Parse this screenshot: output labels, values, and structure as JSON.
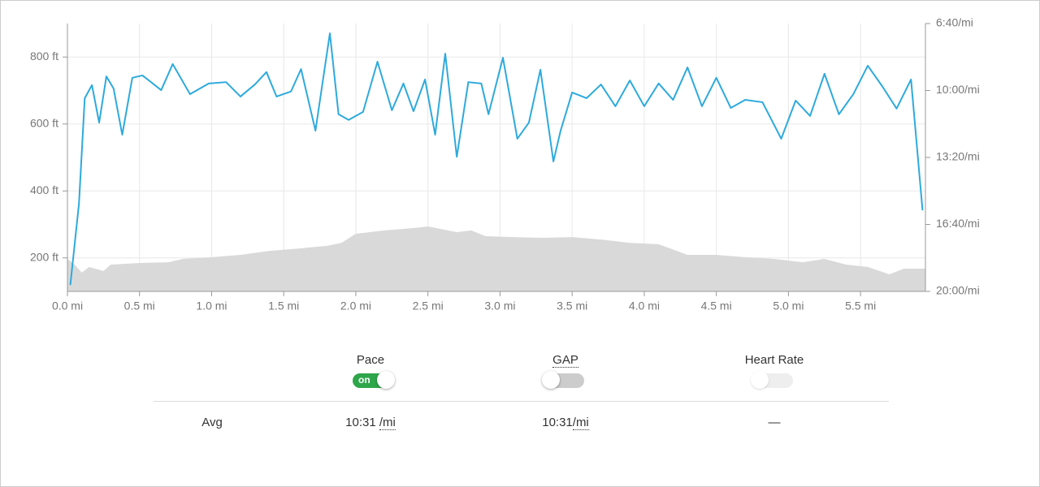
{
  "chart_data": {
    "type": "area-line",
    "xlim": [
      0,
      5.95
    ],
    "xticks": [
      {
        "value": 0,
        "label": "0.0 mi"
      },
      {
        "value": 0.5,
        "label": "0.5 mi"
      },
      {
        "value": 1,
        "label": "1.0 mi"
      },
      {
        "value": 1.5,
        "label": "1.5 mi"
      },
      {
        "value": 2,
        "label": "2.0 mi"
      },
      {
        "value": 2.5,
        "label": "2.5 mi"
      },
      {
        "value": 3,
        "label": "3.0 mi"
      },
      {
        "value": 3.5,
        "label": "3.5 mi"
      },
      {
        "value": 4,
        "label": "4.0 mi"
      },
      {
        "value": 4.5,
        "label": "4.5 mi"
      },
      {
        "value": 5,
        "label": "5.0 mi"
      },
      {
        "value": 5.5,
        "label": "5.5 mi"
      }
    ],
    "ylim": [
      100,
      900
    ],
    "yticks": [
      {
        "value": 200,
        "label": "200 ft"
      },
      {
        "value": 400,
        "label": "400 ft"
      },
      {
        "value": 600,
        "label": "600 ft"
      },
      {
        "value": 800,
        "label": "800 ft"
      }
    ],
    "y2lim": [
      1200,
      400
    ],
    "y2ticks": [
      {
        "value": 400,
        "label": "6:40/mi"
      },
      {
        "value": 600,
        "label": "10:00/mi"
      },
      {
        "value": 800,
        "label": "13:20/mi"
      },
      {
        "value": 1000,
        "label": "16:40/mi"
      },
      {
        "value": 1200,
        "label": "20:00/mi"
      }
    ],
    "grid": true,
    "series": [
      {
        "kind": "area",
        "color": "#d9d9d9",
        "x": [
          0,
          0.05,
          0.1,
          0.15,
          0.25,
          0.3,
          0.5,
          0.7,
          0.8,
          1.0,
          1.2,
          1.4,
          1.6,
          1.8,
          1.9,
          2.0,
          2.2,
          2.4,
          2.5,
          2.7,
          2.8,
          2.9,
          3.1,
          3.3,
          3.5,
          3.7,
          3.9,
          4.1,
          4.3,
          4.5,
          4.7,
          4.9,
          5.1,
          5.25,
          5.4,
          5.55,
          5.7,
          5.8,
          5.95
        ],
        "values": [
          197,
          180,
          156,
          173,
          161,
          180,
          185,
          187,
          197,
          202,
          209,
          221,
          228,
          236,
          245,
          272,
          282,
          289,
          294,
          277,
          282,
          265,
          262,
          260,
          262,
          255,
          245,
          241,
          209,
          209,
          202,
          197,
          187,
          197,
          180,
          173,
          151,
          168,
          168
        ]
      },
      {
        "kind": "line",
        "color": "#2eaadc",
        "axis": "y2",
        "x": [
          0.02,
          0.08,
          0.12,
          0.17,
          0.22,
          0.27,
          0.32,
          0.38,
          0.45,
          0.52,
          0.58,
          0.65,
          0.73,
          0.85,
          0.98,
          1.1,
          1.2,
          1.3,
          1.38,
          1.45,
          1.55,
          1.62,
          1.72,
          1.82,
          1.88,
          1.95,
          2.05,
          2.15,
          2.25,
          2.33,
          2.4,
          2.48,
          2.55,
          2.62,
          2.7,
          2.78,
          2.87,
          2.92,
          3.02,
          3.12,
          3.2,
          3.28,
          3.37,
          3.42,
          3.5,
          3.6,
          3.7,
          3.8,
          3.9,
          4.0,
          4.1,
          4.2,
          4.3,
          4.4,
          4.5,
          4.6,
          4.7,
          4.82,
          4.95,
          5.05,
          5.15,
          5.25,
          5.35,
          5.45,
          5.55,
          5.65,
          5.75,
          5.85,
          5.93
        ],
        "values": [
          1181,
          938,
          623,
          584,
          696,
          558,
          594,
          732,
          562,
          555,
          575,
          599,
          521,
          611,
          579,
          575,
          618,
          582,
          545,
          618,
          603,
          536,
          720,
          429,
          671,
          688,
          664,
          514,
          659,
          579,
          662,
          567,
          732,
          490,
          798,
          575,
          579,
          671,
          502,
          744,
          696,
          538,
          812,
          720,
          606,
          623,
          582,
          647,
          570,
          647,
          579,
          628,
          531,
          647,
          562,
          652,
          628,
          635,
          744,
          630,
          676,
          550,
          671,
          611,
          526,
          587,
          654,
          567,
          958
        ]
      }
    ]
  },
  "toggles": [
    {
      "label": "Pace",
      "state": "on"
    },
    {
      "label": "GAP"
    },
    {
      "label": "Heart Rate"
    }
  ],
  "stats": {
    "label": "Avg",
    "pace": "10:31",
    "pace_unit": "/mi",
    "gap": "10:31",
    "gap_unit": "/mi",
    "heart_rate": "—"
  }
}
